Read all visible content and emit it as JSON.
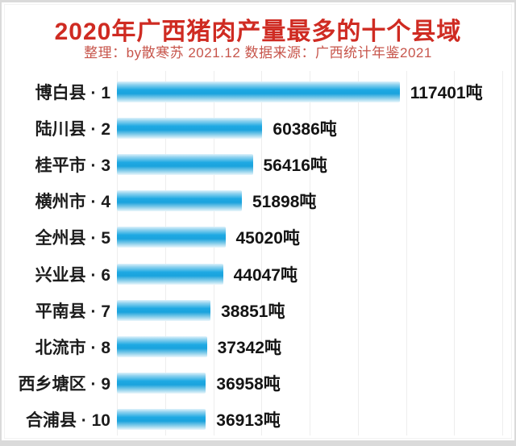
{
  "page": {
    "frame_color": "#dadada",
    "gridline_color": "#ededed",
    "background": "#ffffff"
  },
  "header": {
    "title": "2020年广西猪肉产量最多的十个县域",
    "subtitle": "整理：by散寒苏 2021.12 数据来源：广西统计年鉴2021",
    "title_color": "#cf2b22",
    "subtitle_color": "#c7554b"
  },
  "chart_data": {
    "type": "bar",
    "orientation": "horizontal",
    "title": "2020年广西猪肉产量最多的十个县域",
    "unit": "吨",
    "categories": [
      "博白县 · 1",
      "陆川县 · 2",
      "桂平市 · 3",
      "横州市 · 4",
      "全州县 · 5",
      "兴业县 · 6",
      "平南县 · 7",
      "北流市 · 8",
      "西乡塘区 · 9",
      "合浦县 · 10"
    ],
    "values": [
      117401,
      60386,
      56416,
      51898,
      45020,
      44047,
      38851,
      37342,
      36958,
      36913
    ],
    "value_labels": [
      "117401吨",
      "60386吨",
      "56416吨",
      "51898吨",
      "45020吨",
      "44047吨",
      "38851吨",
      "37342吨",
      "36958吨",
      "36913吨"
    ],
    "xlim": [
      0,
      160000
    ],
    "gridline_interval": 20000,
    "grid": "vertical-lines",
    "legend": "none",
    "bar_gradient": {
      "top": "#dff2fb",
      "upper": "#8fd2ef",
      "mid": "#1ea9e3",
      "lower": "#1aa3dd",
      "fade": "#86cdea",
      "bottom": "#ecf7fc"
    }
  }
}
